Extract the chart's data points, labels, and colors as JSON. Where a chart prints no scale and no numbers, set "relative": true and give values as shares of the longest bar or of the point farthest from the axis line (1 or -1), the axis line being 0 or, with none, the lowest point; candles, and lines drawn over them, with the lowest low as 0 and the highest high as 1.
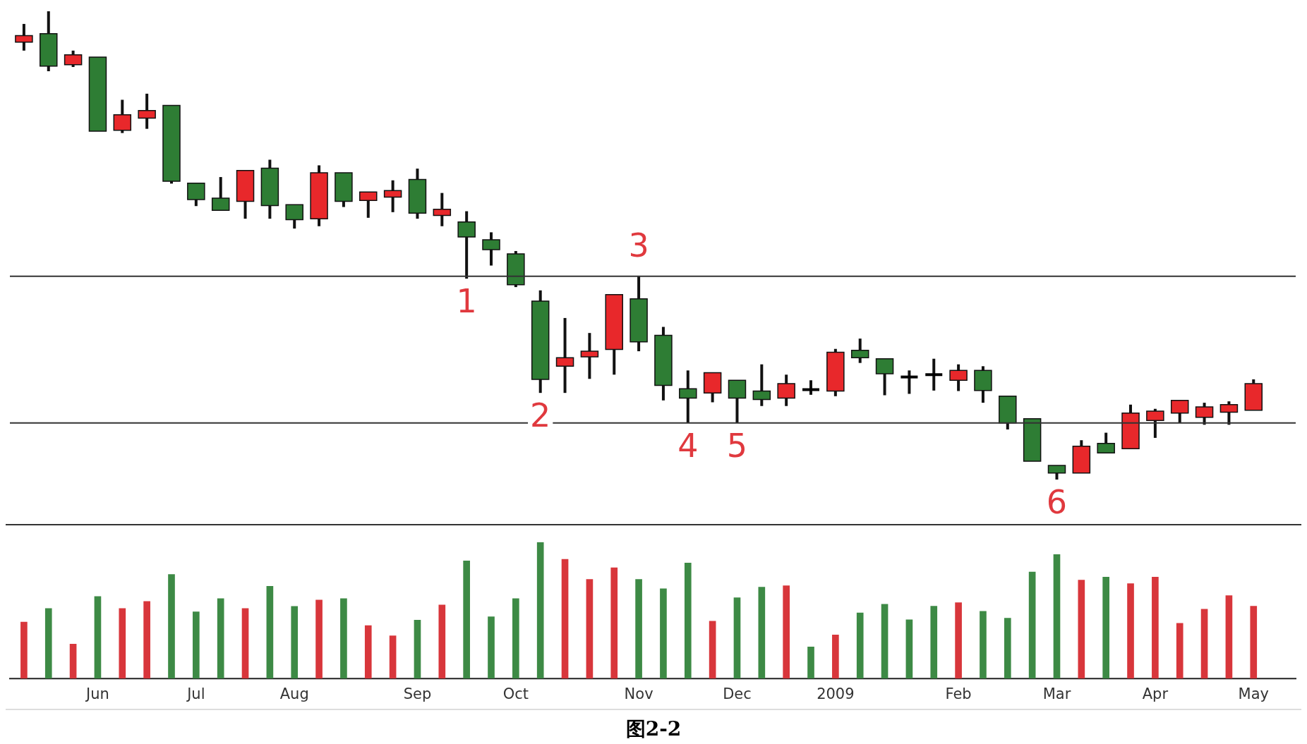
{
  "chart_data": [
    {
      "type": "candlestick",
      "relative": true,
      "tick_labels": false,
      "xlim": [
        "2008-05-12",
        "2009-05-13"
      ],
      "x": [
        "2008-05-16",
        "2008-05-23",
        "2008-05-30",
        "2008-06-06",
        "2008-06-13",
        "2008-06-20",
        "2008-06-27",
        "2008-07-04",
        "2008-07-11",
        "2008-07-18",
        "2008-07-25",
        "2008-08-01",
        "2008-08-08",
        "2008-08-15",
        "2008-08-22",
        "2008-08-29",
        "2008-09-05",
        "2008-09-12",
        "2008-09-19",
        "2008-09-26",
        "2008-10-03",
        "2008-10-10",
        "2008-10-17",
        "2008-10-24",
        "2008-10-31",
        "2008-11-07",
        "2008-11-14",
        "2008-11-21",
        "2008-11-28",
        "2008-12-05",
        "2008-12-12",
        "2008-12-19",
        "2008-12-26",
        "2009-01-02",
        "2009-01-09",
        "2009-01-16",
        "2009-01-23",
        "2009-01-30",
        "2009-02-06",
        "2009-02-13",
        "2009-02-20",
        "2009-02-27",
        "2009-03-06",
        "2009-03-13",
        "2009-03-20",
        "2009-03-27",
        "2009-04-03",
        "2009-04-10",
        "2009-04-17",
        "2009-04-24",
        "2009-05-01"
      ],
      "ohlc": [
        [
          0.934,
          0.973,
          0.916,
          0.948
        ],
        [
          0.952,
          1,
          0.872,
          0.883
        ],
        [
          0.886,
          0.916,
          0.881,
          0.907
        ],
        [
          0.902,
          0.902,
          0.744,
          0.744
        ],
        [
          0.746,
          0.811,
          0.74,
          0.779
        ],
        [
          0.772,
          0.824,
          0.749,
          0.788
        ],
        [
          0.799,
          0.799,
          0.632,
          0.637
        ],
        [
          0.633,
          0.633,
          0.584,
          0.598
        ],
        [
          0.601,
          0.646,
          0.573,
          0.575
        ],
        [
          0.594,
          0.66,
          0.557,
          0.66
        ],
        [
          0.665,
          0.683,
          0.557,
          0.585
        ],
        [
          0.587,
          0.587,
          0.536,
          0.555
        ],
        [
          0.557,
          0.671,
          0.541,
          0.655
        ],
        [
          0.655,
          0.655,
          0.582,
          0.594
        ],
        [
          0.596,
          0.616,
          0.559,
          0.614
        ],
        [
          0.603,
          0.639,
          0.571,
          0.617
        ],
        [
          0.641,
          0.664,
          0.557,
          0.569
        ],
        [
          0.564,
          0.612,
          0.541,
          0.577
        ],
        [
          0.55,
          0.573,
          0.429,
          0.518
        ],
        [
          0.512,
          0.528,
          0.457,
          0.491
        ],
        [
          0.482,
          0.488,
          0.411,
          0.416
        ],
        [
          0.381,
          0.404,
          0.185,
          0.214
        ],
        [
          0.242,
          0.345,
          0.185,
          0.26
        ],
        [
          0.262,
          0.313,
          0.215,
          0.274
        ],
        [
          0.278,
          0.395,
          0.224,
          0.395
        ],
        [
          0.386,
          0.434,
          0.274,
          0.294
        ],
        [
          0.308,
          0.326,
          0.169,
          0.201
        ],
        [
          0.194,
          0.233,
          0.121,
          0.174
        ],
        [
          0.185,
          0.231,
          0.165,
          0.228
        ],
        [
          0.212,
          0.212,
          0.121,
          0.174
        ],
        [
          0.189,
          0.246,
          0.157,
          0.171
        ],
        [
          0.174,
          0.224,
          0.157,
          0.205
        ],
        [
          0.192,
          0.212,
          0.181,
          0.192
        ],
        [
          0.189,
          0.279,
          0.178,
          0.272
        ],
        [
          0.276,
          0.301,
          0.249,
          0.26
        ],
        [
          0.258,
          0.258,
          0.18,
          0.226
        ],
        [
          0.219,
          0.233,
          0.183,
          0.219
        ],
        [
          0.224,
          0.258,
          0.19,
          0.224
        ],
        [
          0.212,
          0.246,
          0.189,
          0.233
        ],
        [
          0.233,
          0.242,
          0.164,
          0.19
        ],
        [
          0.178,
          0.18,
          0.107,
          0.121
        ],
        [
          0.13,
          0.13,
          0.039,
          0.039
        ],
        [
          0.03,
          0.03,
          0,
          0.014
        ],
        [
          0.014,
          0.084,
          0.014,
          0.071
        ],
        [
          0.077,
          0.1,
          0.057,
          0.057
        ],
        [
          0.066,
          0.16,
          0.066,
          0.142
        ],
        [
          0.126,
          0.151,
          0.089,
          0.146
        ],
        [
          0.142,
          0.169,
          0.121,
          0.169
        ],
        [
          0.133,
          0.164,
          0.117,
          0.155
        ],
        [
          0.144,
          0.167,
          0.117,
          0.16
        ],
        [
          0.148,
          0.214,
          0.148,
          0.205
        ]
      ],
      "colors": [
        "#e8282b",
        "#2e7d34",
        "#e8282b",
        "#2e7d34",
        "#e8282b",
        "#e8282b",
        "#2e7d34",
        "#2e7d34",
        "#2e7d34",
        "#e8282b",
        "#2e7d34",
        "#2e7d34",
        "#e8282b",
        "#2e7d34",
        "#e8282b",
        "#e8282b",
        "#2e7d34",
        "#e8282b",
        "#2e7d34",
        "#2e7d34",
        "#2e7d34",
        "#2e7d34",
        "#e8282b",
        "#e8282b",
        "#e8282b",
        "#2e7d34",
        "#2e7d34",
        "#2e7d34",
        "#e8282b",
        "#2e7d34",
        "#2e7d34",
        "#e8282b",
        "#000000",
        "#e8282b",
        "#2e7d34",
        "#2e7d34",
        "#000000",
        "#000000",
        "#e8282b",
        "#2e7d34",
        "#2e7d34",
        "#2e7d34",
        "#2e7d34",
        "#e8282b",
        "#2e7d34",
        "#e8282b",
        "#e8282b",
        "#e8282b",
        "#e8282b",
        "#e8282b",
        "#e8282b"
      ],
      "ref_lines": [
        {
          "axis": "y",
          "value": 0.434
        },
        {
          "axis": "y",
          "value": 0.121
        }
      ],
      "annotations": [
        {
          "text": "1",
          "x": "2008-09-19",
          "y": 0.429
        },
        {
          "text": "2",
          "x": "2008-10-10",
          "y": 0.185
        },
        {
          "text": "3",
          "x": "2008-11-07",
          "y": 0.434
        },
        {
          "text": "4",
          "x": "2008-11-21",
          "y": 0.121
        },
        {
          "text": "5",
          "x": "2008-12-05",
          "y": 0.121
        },
        {
          "text": "6",
          "x": "2009-03-06",
          "y": 0
        }
      ]
    },
    {
      "type": "bar",
      "relative": true,
      "xlim": [
        "2008-05-12",
        "2009-05-13"
      ],
      "xticks": [
        {
          "value": "2008-06-06",
          "label": "Jun"
        },
        {
          "value": "2008-07-04",
          "label": "Jul"
        },
        {
          "value": "2008-08-01",
          "label": "Aug"
        },
        {
          "value": "2008-09-05",
          "label": "Sep"
        },
        {
          "value": "2008-10-03",
          "label": "Oct"
        },
        {
          "value": "2008-11-07",
          "label": "Nov"
        },
        {
          "value": "2008-12-05",
          "label": "Dec"
        },
        {
          "value": "2009-01-02",
          "label": "2009"
        },
        {
          "value": "2009-02-06",
          "label": "Feb"
        },
        {
          "value": "2009-03-06",
          "label": "Mar"
        },
        {
          "value": "2009-04-03",
          "label": "Apr"
        },
        {
          "value": "2009-05-01",
          "label": "May"
        }
      ],
      "x": [
        "2008-05-16",
        "2008-05-23",
        "2008-05-30",
        "2008-06-06",
        "2008-06-13",
        "2008-06-20",
        "2008-06-27",
        "2008-07-04",
        "2008-07-11",
        "2008-07-18",
        "2008-07-25",
        "2008-08-01",
        "2008-08-08",
        "2008-08-15",
        "2008-08-22",
        "2008-08-29",
        "2008-09-05",
        "2008-09-12",
        "2008-09-19",
        "2008-09-26",
        "2008-10-03",
        "2008-10-10",
        "2008-10-17",
        "2008-10-24",
        "2008-10-31",
        "2008-11-07",
        "2008-11-14",
        "2008-11-21",
        "2008-11-28",
        "2008-12-05",
        "2008-12-12",
        "2008-12-19",
        "2008-12-26",
        "2009-01-02",
        "2009-01-09",
        "2009-01-16",
        "2009-01-23",
        "2009-01-30",
        "2009-02-06",
        "2009-02-13",
        "2009-02-20",
        "2009-02-27",
        "2009-03-06",
        "2009-03-13",
        "2009-03-20",
        "2009-03-27",
        "2009-04-03",
        "2009-04-10",
        "2009-04-17",
        "2009-04-24",
        "2009-05-01"
      ],
      "values": [
        0.414,
        0.514,
        0.252,
        0.601,
        0.514,
        0.565,
        0.763,
        0.489,
        0.586,
        0.514,
        0.676,
        0.529,
        0.576,
        0.586,
        0.388,
        0.313,
        0.428,
        0.54,
        0.863,
        0.453,
        0.586,
        1,
        0.874,
        0.727,
        0.813,
        0.727,
        0.659,
        0.847,
        0.42,
        0.593,
        0.67,
        0.681,
        0.232,
        0.32,
        0.482,
        0.545,
        0.431,
        0.53,
        0.556,
        0.493,
        0.442,
        0.781,
        0.909,
        0.722,
        0.744,
        0.696,
        0.744,
        0.405,
        0.508,
        0.608,
        0.53
      ],
      "colors": [
        "#d8363b",
        "#3d8a45",
        "#d8363b",
        "#3d8a45",
        "#d8363b",
        "#d8363b",
        "#3d8a45",
        "#3d8a45",
        "#3d8a45",
        "#d8363b",
        "#3d8a45",
        "#3d8a45",
        "#d8363b",
        "#3d8a45",
        "#d8363b",
        "#d8363b",
        "#3d8a45",
        "#d8363b",
        "#3d8a45",
        "#3d8a45",
        "#3d8a45",
        "#3d8a45",
        "#d8363b",
        "#d8363b",
        "#d8363b",
        "#3d8a45",
        "#3d8a45",
        "#3d8a45",
        "#d8363b",
        "#3d8a45",
        "#3d8a45",
        "#d8363b",
        "#3d8a45",
        "#d8363b",
        "#3d8a45",
        "#3d8a45",
        "#3d8a45",
        "#3d8a45",
        "#d8363b",
        "#3d8a45",
        "#3d8a45",
        "#3d8a45",
        "#3d8a45",
        "#d8363b",
        "#3d8a45",
        "#d8363b",
        "#d8363b",
        "#d8363b",
        "#d8363b",
        "#d8363b",
        "#d8363b"
      ],
      "annotations": [
        "图2-2"
      ]
    }
  ]
}
